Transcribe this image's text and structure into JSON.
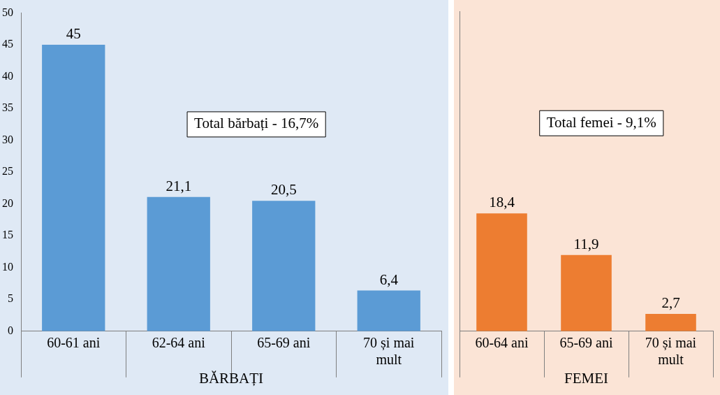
{
  "chart_data": [
    {
      "type": "bar",
      "categories": [
        "60-61 ani",
        "62-64 ani",
        "65-69 ani",
        "70 și mai mult"
      ],
      "values": [
        45,
        21.1,
        20.5,
        6.4
      ],
      "value_labels": [
        "45",
        "21,1",
        "20,5",
        "6,4"
      ],
      "color": "#5b9bd5",
      "ylim": [
        0,
        50
      ],
      "yticks": [
        0,
        5,
        10,
        15,
        20,
        25,
        30,
        35,
        40,
        45,
        50
      ],
      "xlabel": "BĂRBAȚI",
      "annotations": [
        "Total bărbați - 16,7%"
      ]
    },
    {
      "type": "bar",
      "categories": [
        "60-64 ani",
        "65-69 ani",
        "70 și mai mult"
      ],
      "values": [
        18.4,
        11.9,
        2.7
      ],
      "value_labels": [
        "18,4",
        "11,9",
        "2,7"
      ],
      "color": "#ed7d31",
      "ylim": [
        0,
        50
      ],
      "yticks": [
        0,
        5,
        10,
        15,
        20,
        25,
        30,
        35,
        40,
        45,
        50
      ],
      "tick_labels": "x",
      "xlabel": "FEMEI",
      "annotations": [
        "Total femei - 9,1%"
      ]
    }
  ]
}
